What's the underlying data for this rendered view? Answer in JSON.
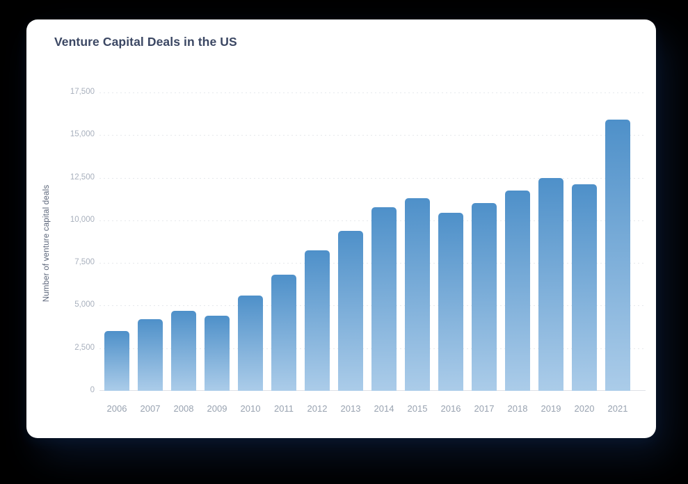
{
  "card": {
    "title": "Venture Capital Deals in the US"
  },
  "chart_data": {
    "type": "bar",
    "title": "Venture Capital Deals in the US",
    "xlabel": "",
    "ylabel": "Number of venture capital deals",
    "categories": [
      "2006",
      "2007",
      "2008",
      "2009",
      "2010",
      "2011",
      "2012",
      "2013",
      "2014",
      "2015",
      "2016",
      "2017",
      "2018",
      "2019",
      "2020",
      "2021"
    ],
    "values": [
      3500,
      4200,
      4700,
      4400,
      5600,
      6800,
      8250,
      9400,
      10750,
      11300,
      10450,
      11000,
      11750,
      12500,
      12100,
      15900
    ],
    "ylim": [
      0,
      17500
    ],
    "yticks": [
      0,
      2500,
      5000,
      7500,
      10000,
      12500,
      15000,
      17500
    ],
    "ytick_labels": [
      "0",
      "2,500",
      "5,000",
      "7,500",
      "10,000",
      "12,500",
      "15,000",
      "17,500"
    ],
    "grid": "horizontal-dashed",
    "legend": "none",
    "colors": {
      "bar_gradient_top": "#4e90c9",
      "bar_gradient_bottom": "#abcce9",
      "gridline": "#e6e8ec",
      "axis_line": "#dde1e7",
      "ytick_text": "#a8b0bd",
      "xtick_text": "#98a2b0",
      "title_text": "#3b4763",
      "ylabel_text": "#5a6478",
      "card_background": "#ffffff",
      "page_background": "#000000"
    }
  }
}
